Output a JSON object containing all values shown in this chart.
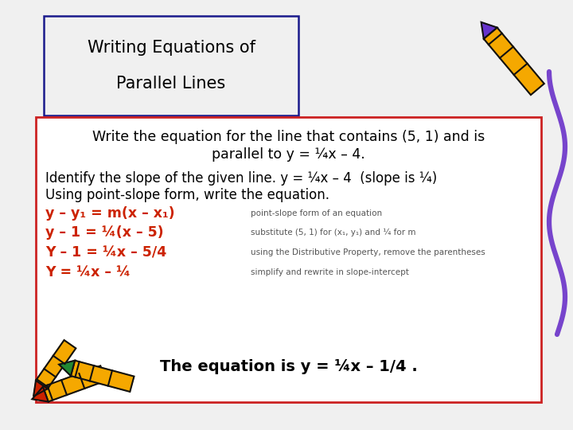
{
  "bg_color": "#f0f0f0",
  "title_box_text_line1": "Writing Equations of",
  "title_box_text_line2": "Parallel Lines",
  "title_box_border": "#1a1a8c",
  "title_box_bg": "#f0f0f0",
  "red_box_border": "#cc2222",
  "red_box_bg": "#ffffff",
  "problem_line1": "Write the equation for the line that contains (5, 1) and is",
  "problem_line2": "parallel to y = ¼x – 4.",
  "identify_line": "Identify the slope of the given line. y = ¼x – 4  (slope is ¼)",
  "using_line": "Using point-slope form, write the equation.",
  "steps_left": [
    "y – y₁ = m(x – x₁)",
    "y – 1 = ¼(x – 5)",
    "Y – 1 = ¼x – 5/4",
    "Y = ¼x – ¼"
  ],
  "steps_right": [
    "point-slope form of an equation",
    "substitute (5, 1) for (x₁, y₁) and ¼ for m",
    "using the Distributive Property, remove the parentheses",
    "simplify and rewrite in slope-intercept"
  ],
  "conclusion": "The equation is y = ¼x – 1/4 .",
  "left_color": "#cc2200",
  "right_color": "#555555",
  "black": "#000000"
}
